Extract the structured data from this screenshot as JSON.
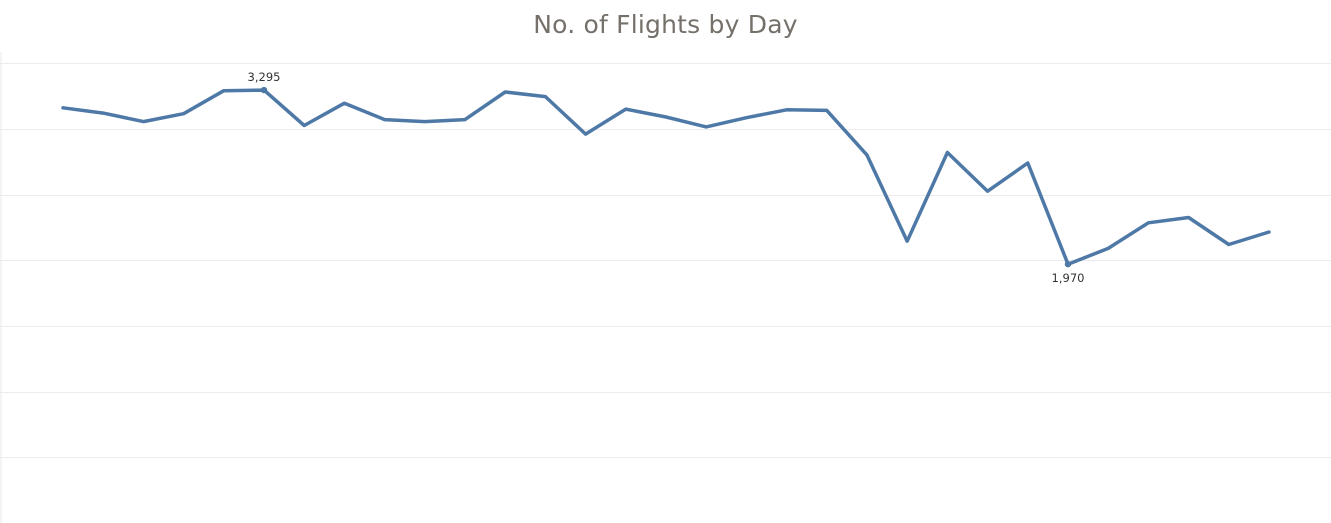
{
  "title": "No. of Flights by Day",
  "colors": {
    "series": "#4e79a7",
    "gridline": "#ececec",
    "title": "#76706a"
  },
  "chart_data": {
    "type": "line",
    "title": "No. of Flights by Day",
    "xlabel": "",
    "ylabel": "",
    "ylim": [
      0,
      3600
    ],
    "y_ticks": [
      0,
      500,
      1000,
      1500,
      2000,
      2500,
      3000,
      3500
    ],
    "grid": true,
    "legend": "none",
    "x": [
      1,
      2,
      3,
      4,
      5,
      6,
      7,
      8,
      9,
      10,
      11,
      12,
      13,
      14,
      15,
      16,
      17,
      18,
      19,
      20,
      21,
      22,
      23,
      24,
      25,
      26,
      27,
      28,
      29,
      30,
      31
    ],
    "series": [
      {
        "values": [
          3160,
          3120,
          3055,
          3115,
          3290,
          3295,
          3025,
          3195,
          3070,
          3055,
          3070,
          3280,
          3245,
          2960,
          3150,
          3090,
          3015,
          3085,
          3145,
          3140,
          2800,
          2145,
          2820,
          2525,
          2740,
          1970,
          2090,
          2285,
          2325,
          2120,
          2215
        ]
      }
    ],
    "annotations": [
      {
        "x": 6,
        "value": 3295,
        "text": "3,295",
        "position": "above"
      },
      {
        "x": 26,
        "value": 1970,
        "text": "1,970",
        "position": "below"
      }
    ]
  }
}
